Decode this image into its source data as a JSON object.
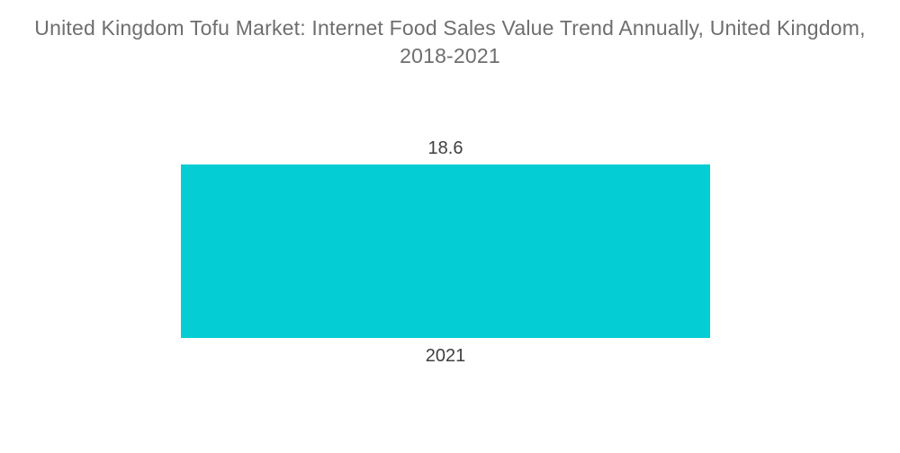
{
  "chart_data": {
    "type": "bar",
    "title": "United Kingdom Tofu Market: Internet Food Sales Value Trend Annually, United Kingdom, 2018-2021",
    "title_lines": [
      "United Kingdom Tofu Market: Internet Food Sales Value Trend Annually, United Kingdom,",
      "2018-2021"
    ],
    "categories": [
      "2021"
    ],
    "values": [
      18.6
    ],
    "xlabel": "",
    "ylabel": "",
    "legend": "none",
    "grid": false,
    "axes_visible": false,
    "bar_color": "#04CDD3",
    "title_color": "#6E6E6E",
    "label_color": "#3F3F3F",
    "background_color": "#FFFFFF"
  }
}
